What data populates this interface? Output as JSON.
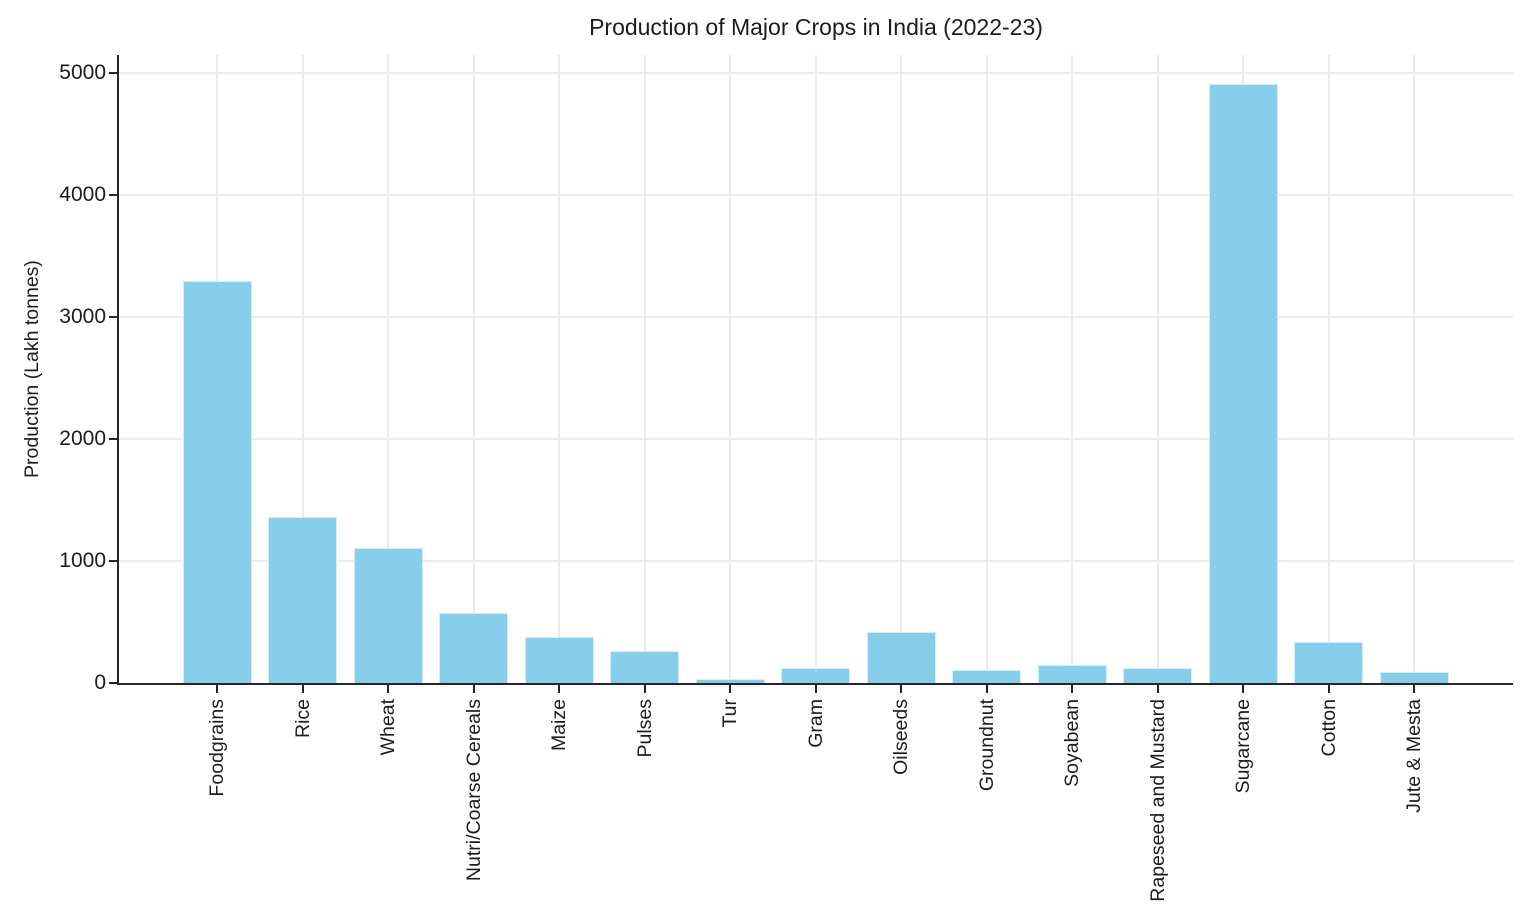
{
  "chart_data": {
    "type": "bar",
    "title": "Production of Major Crops in India (2022-23)",
    "ylabel": "Production (Lakh tonnes)",
    "xlabel": "",
    "categories": [
      "Foodgrains",
      "Rice",
      "Wheat",
      "Nutri/Coarse Cereals",
      "Maize",
      "Pulses",
      "Tur",
      "Gram",
      "Oilseeds",
      "Groundnut",
      "Soyabean",
      "Rapeseed and Mustard",
      "Sugarcane",
      "Cotton",
      "Jute & Mesta"
    ],
    "values": [
      3297,
      1358,
      1106,
      573,
      381,
      261,
      33,
      123,
      414,
      103,
      150,
      126,
      4905,
      337,
      94
    ],
    "yticks": [
      0,
      1000,
      2000,
      3000,
      4000,
      5000
    ],
    "ylim": [
      0,
      5145
    ],
    "grid": true,
    "legend": false,
    "colors": {
      "bar": "#87CEEB",
      "grid": "#ebebeb",
      "axis": "#262626",
      "text": "#1c1c1c"
    }
  }
}
